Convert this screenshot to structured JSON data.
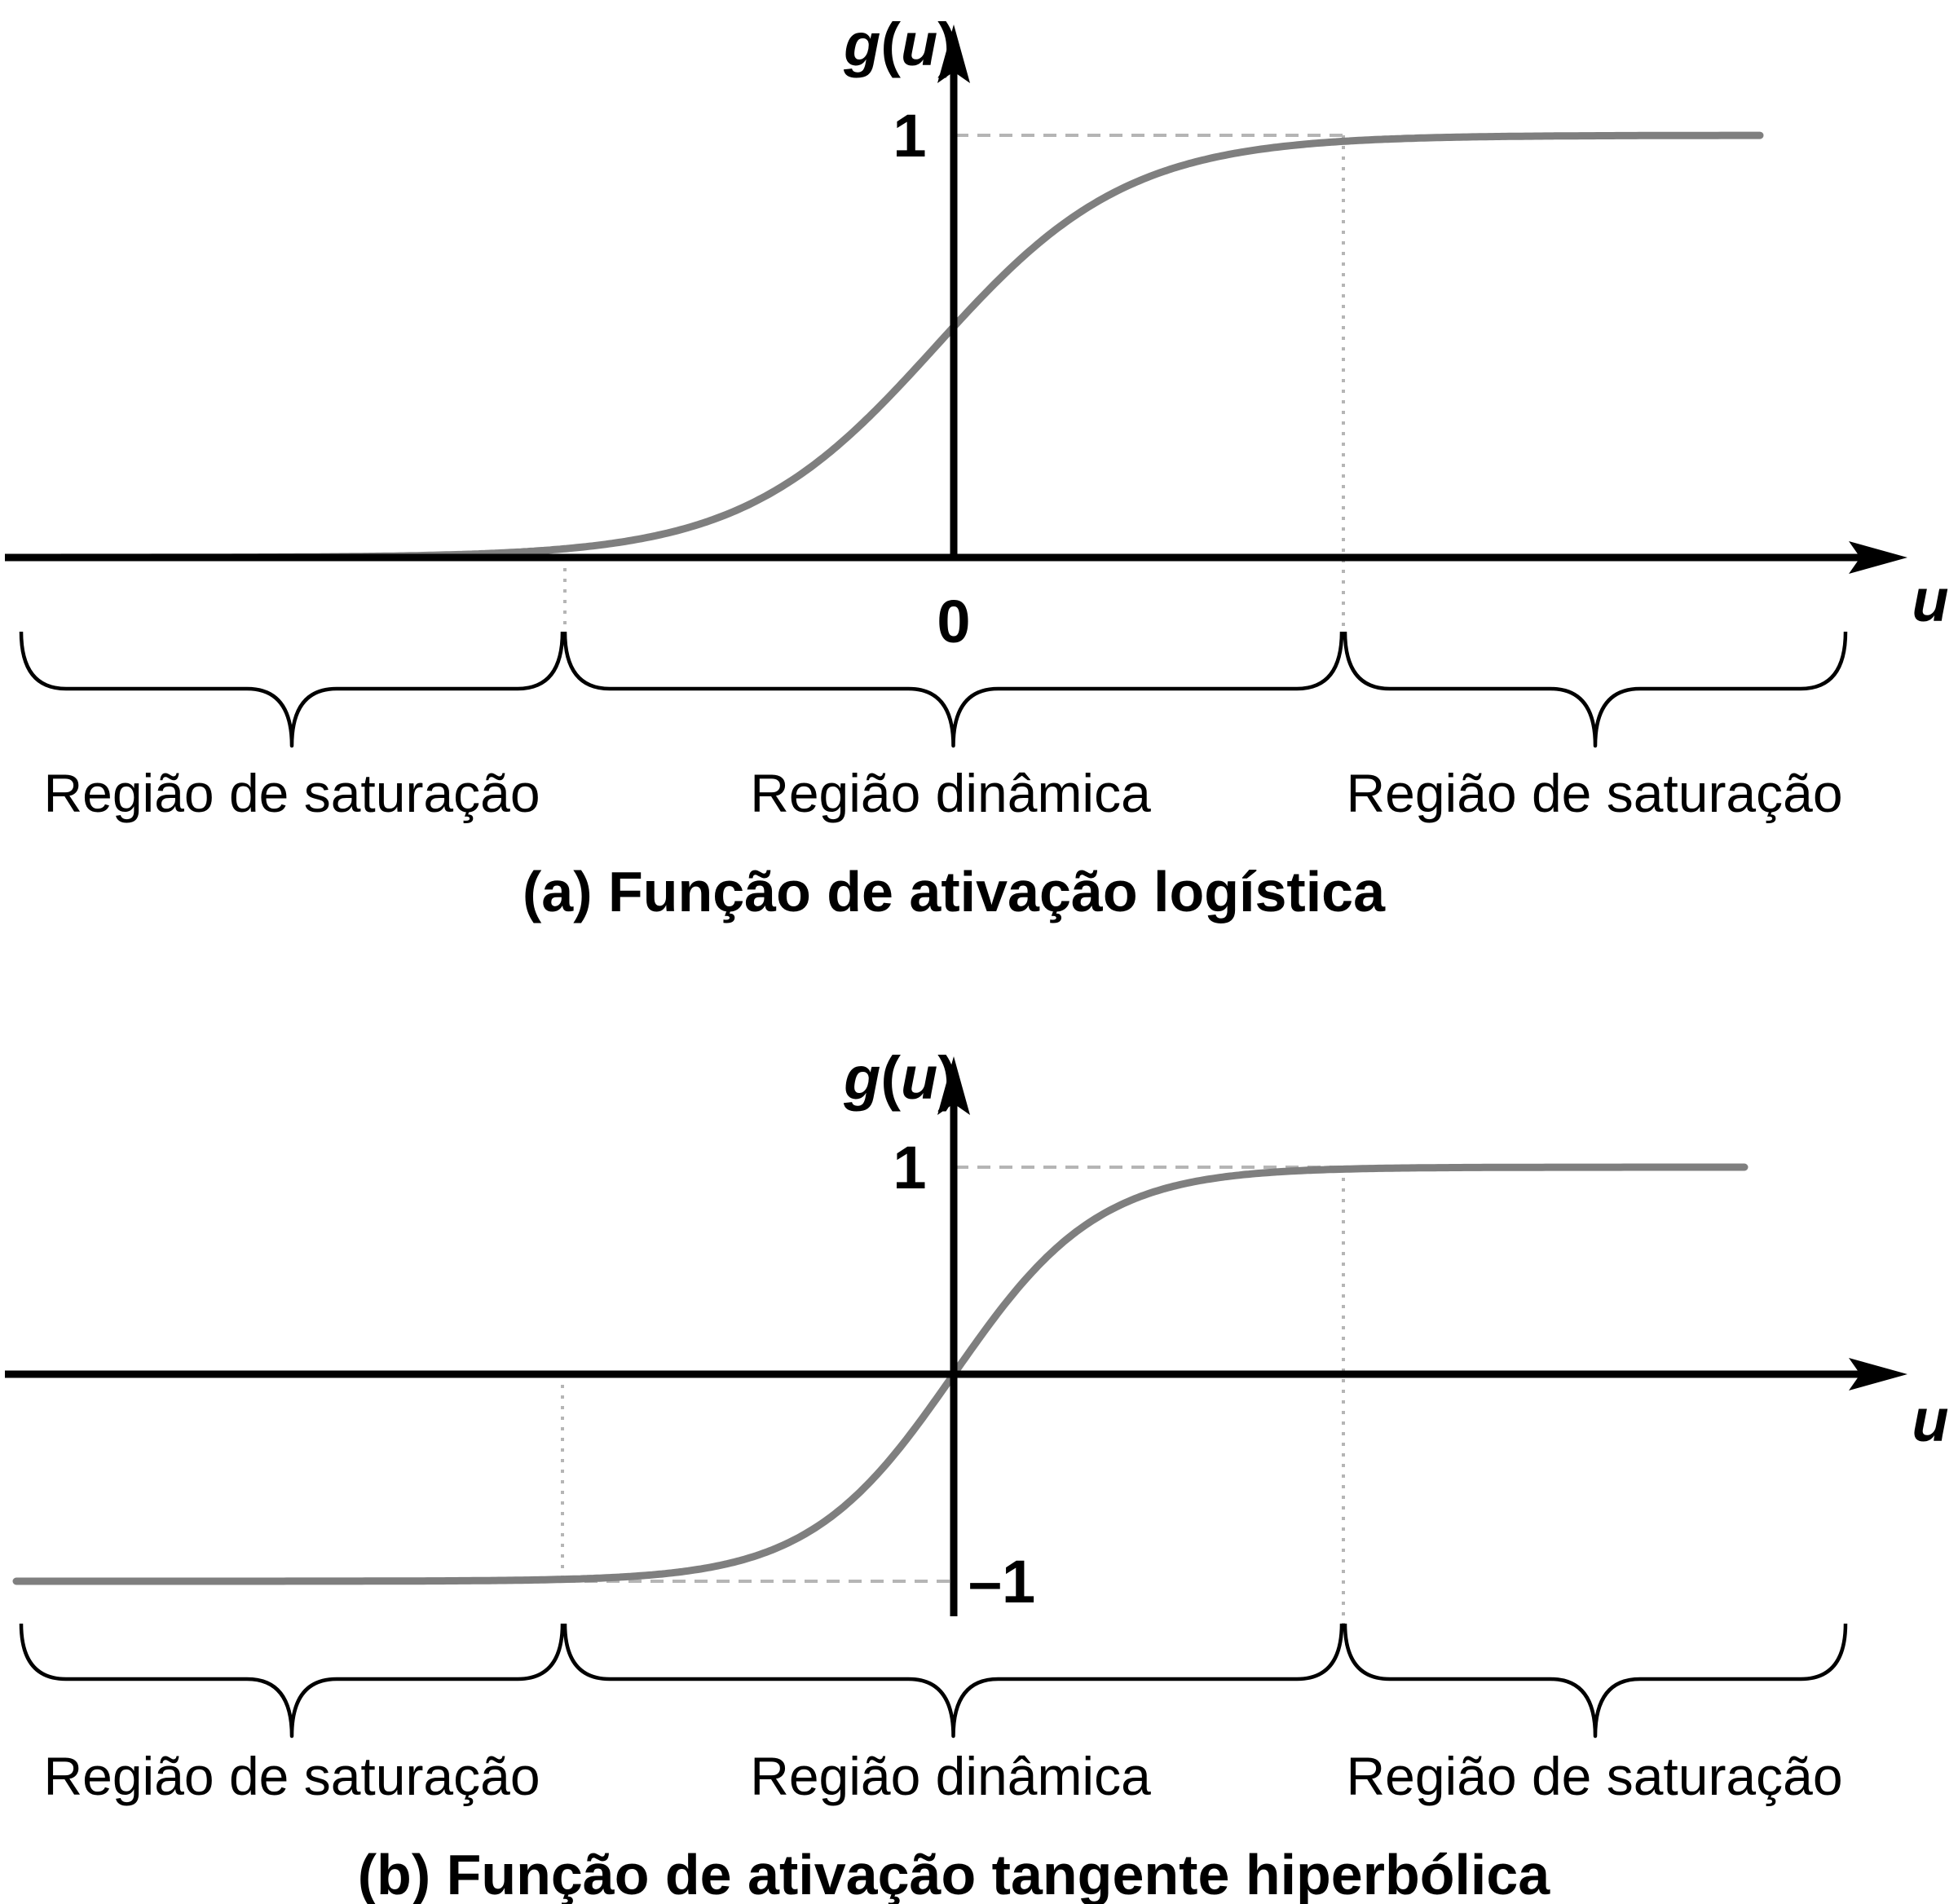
{
  "panels": [
    {
      "id": "a",
      "function": "logistic",
      "y_axis_label": {
        "g": "g",
        "open": "(",
        "u": "u",
        "close": ")"
      },
      "x_axis_label": "u",
      "tick_labels": {
        "upper": "1",
        "origin": "0"
      },
      "regions": [
        "Região de saturação",
        "Região dinâmica",
        "Região de saturação"
      ],
      "caption": "(a) Função de ativação logística"
    },
    {
      "id": "b",
      "function": "tanh",
      "y_axis_label": {
        "g": "g",
        "open": "(",
        "u": "u",
        "close": ")"
      },
      "x_axis_label": "u",
      "tick_labels": {
        "upper": "1",
        "lower": "–1"
      },
      "regions": [
        "Região de saturação",
        "Região dinâmica",
        "Região de saturação"
      ],
      "caption": "(b) Função de ativação tangente hiperbólica"
    }
  ],
  "colors": {
    "axis": "#000000",
    "curve": "#7f7f7f",
    "guide": "#b5b5b5"
  }
}
